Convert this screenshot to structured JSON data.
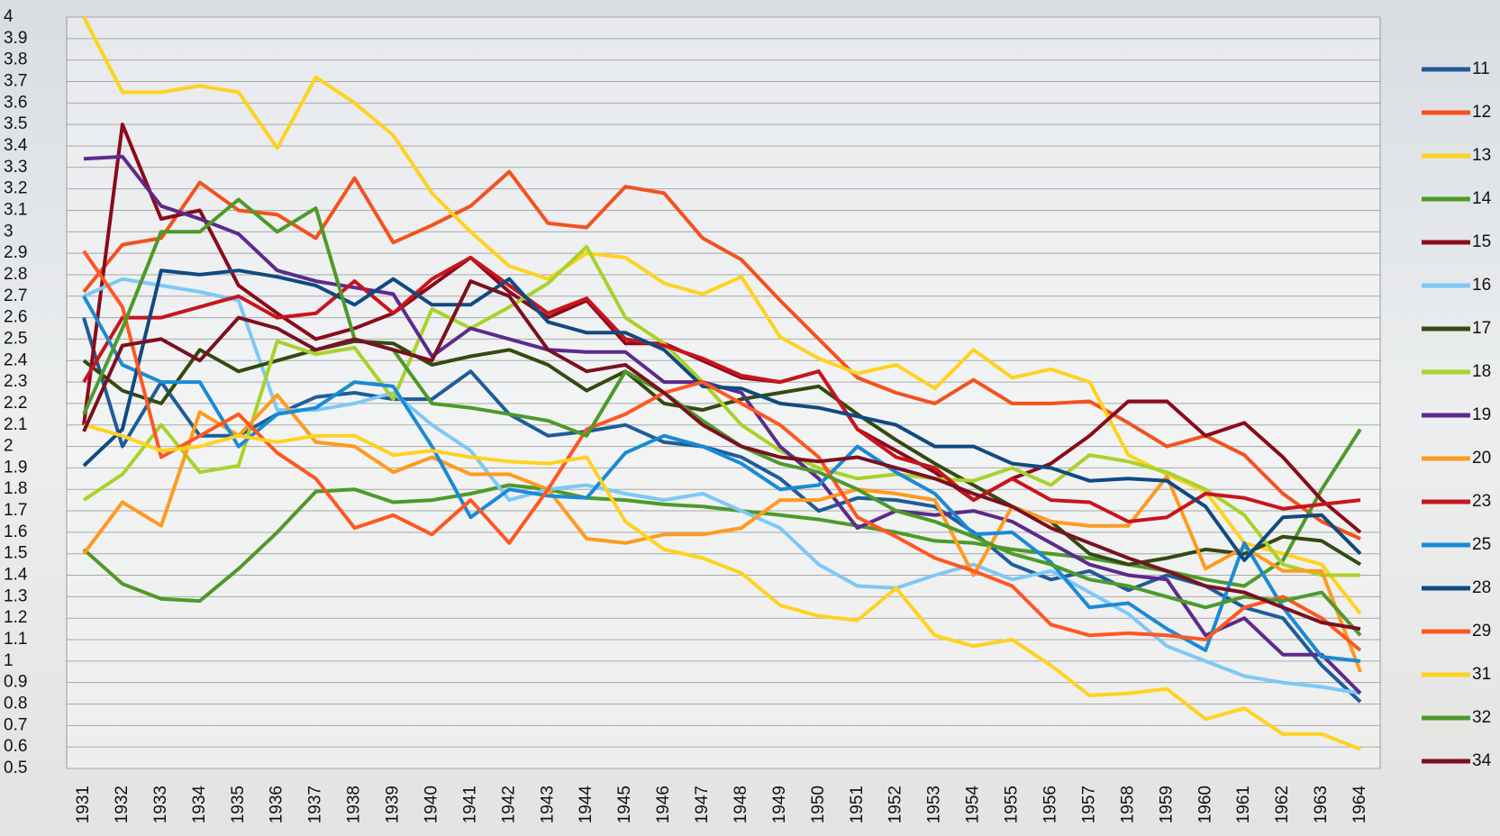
{
  "chart_data": {
    "type": "line",
    "categories": [
      "1931",
      "1932",
      "1933",
      "1934",
      "1935",
      "1936",
      "1937",
      "1938",
      "1939",
      "1940",
      "1941",
      "1942",
      "1943",
      "1944",
      "1945",
      "1946",
      "1947",
      "1948",
      "1949",
      "1950",
      "1951",
      "1952",
      "1953",
      "1954",
      "1955",
      "1956",
      "1957",
      "1958",
      "1959",
      "1960",
      "1961",
      "1962",
      "1963",
      "1964"
    ],
    "ylim": [
      0.5,
      4
    ],
    "yticks": [
      0.5,
      0.6,
      0.7,
      0.8,
      0.9,
      1,
      1.1,
      1.2,
      1.3,
      1.4,
      1.5,
      1.6,
      1.7,
      1.8,
      1.9,
      2,
      2.1,
      2.2,
      2.3,
      2.4,
      2.5,
      2.6,
      2.7,
      2.8,
      2.9,
      3,
      3.1,
      3.2,
      3.3,
      3.4,
      3.5,
      3.6,
      3.7,
      3.8,
      3.9,
      4
    ],
    "grid": true,
    "legend": "right",
    "series": [
      {
        "name": "11",
        "color": "#1f5c99",
        "values": [
          2.6,
          2.0,
          2.3,
          2.05,
          2.05,
          2.15,
          2.23,
          2.25,
          2.22,
          2.22,
          2.35,
          2.15,
          2.05,
          2.07,
          2.1,
          2.02,
          2.0,
          1.95,
          1.85,
          1.7,
          1.76,
          1.75,
          1.72,
          1.6,
          1.45,
          1.38,
          1.42,
          1.33,
          1.4,
          1.35,
          1.25,
          1.2,
          0.98,
          0.81
        ]
      },
      {
        "name": "12",
        "color": "#f4511e",
        "values": [
          2.72,
          2.94,
          2.97,
          3.23,
          3.1,
          3.08,
          2.97,
          3.25,
          2.95,
          3.03,
          3.12,
          3.28,
          3.04,
          3.02,
          3.21,
          3.18,
          2.97,
          2.87,
          2.68,
          2.5,
          2.32,
          2.25,
          2.2,
          2.31,
          2.2,
          2.2,
          2.21,
          2.11,
          2.0,
          2.05,
          1.96,
          1.78,
          1.65,
          1.57
        ]
      },
      {
        "name": "13",
        "color": "#ffd21f",
        "values": [
          4.0,
          3.65,
          3.65,
          3.68,
          3.65,
          3.39,
          3.72,
          3.6,
          3.45,
          3.18,
          3.0,
          2.84,
          2.78,
          2.9,
          2.88,
          2.76,
          2.71,
          2.79,
          2.51,
          2.41,
          2.34,
          2.38,
          2.27,
          2.45,
          2.32,
          2.36,
          2.3,
          1.96,
          1.87,
          1.79,
          1.55,
          1.5,
          1.45,
          1.22
        ]
      },
      {
        "name": "14",
        "color": "#4d9a2a",
        "values": [
          1.52,
          1.36,
          1.29,
          1.28,
          1.43,
          1.6,
          1.79,
          1.8,
          1.74,
          1.75,
          1.78,
          1.82,
          1.8,
          1.76,
          1.75,
          1.73,
          1.72,
          1.7,
          1.68,
          1.66,
          1.63,
          1.6,
          1.56,
          1.55,
          1.52,
          1.5,
          1.48,
          1.45,
          1.42,
          1.38,
          1.35,
          1.47,
          1.8,
          2.08
        ]
      },
      {
        "name": "15",
        "color": "#8b0a1a",
        "values": [
          2.1,
          3.5,
          3.06,
          3.1,
          2.75,
          2.62,
          2.5,
          2.55,
          2.62,
          2.75,
          2.88,
          2.72,
          2.6,
          2.68,
          2.48,
          2.48,
          2.4,
          2.32,
          2.3,
          2.35,
          2.08,
          1.98,
          1.88,
          1.75,
          1.85,
          1.92,
          2.05,
          2.21,
          2.21,
          2.05,
          2.11,
          1.95,
          1.75,
          1.6
        ]
      },
      {
        "name": "16",
        "color": "#7ec8f5",
        "values": [
          2.7,
          2.78,
          2.75,
          2.72,
          2.68,
          2.17,
          2.17,
          2.2,
          2.25,
          2.1,
          1.98,
          1.75,
          1.8,
          1.82,
          1.78,
          1.75,
          1.78,
          1.7,
          1.62,
          1.45,
          1.35,
          1.34,
          1.4,
          1.45,
          1.38,
          1.42,
          1.32,
          1.22,
          1.07,
          1.0,
          0.93,
          0.9,
          0.88,
          0.85
        ]
      },
      {
        "name": "17",
        "color": "#344a0f",
        "values": [
          2.4,
          2.26,
          2.2,
          2.45,
          2.35,
          2.4,
          2.45,
          2.49,
          2.48,
          2.38,
          2.42,
          2.45,
          2.38,
          2.26,
          2.35,
          2.2,
          2.17,
          2.22,
          2.25,
          2.28,
          2.15,
          2.03,
          1.92,
          1.82,
          1.72,
          1.65,
          1.5,
          1.45,
          1.48,
          1.52,
          1.5,
          1.58,
          1.56,
          1.45
        ]
      },
      {
        "name": "18",
        "color": "#a9d22a",
        "values": [
          1.75,
          1.87,
          2.1,
          1.88,
          1.91,
          2.49,
          2.43,
          2.46,
          2.22,
          2.64,
          2.55,
          2.65,
          2.76,
          2.93,
          2.6,
          2.48,
          2.3,
          2.1,
          1.98,
          1.9,
          1.85,
          1.87,
          1.85,
          1.84,
          1.9,
          1.82,
          1.96,
          1.93,
          1.88,
          1.8,
          1.68,
          1.45,
          1.4,
          1.4
        ]
      },
      {
        "name": "19",
        "color": "#5c2a8c",
        "values": [
          3.34,
          3.35,
          3.12,
          3.06,
          2.99,
          2.82,
          2.77,
          2.74,
          2.71,
          2.42,
          2.55,
          2.5,
          2.45,
          2.44,
          2.44,
          2.3,
          2.3,
          2.25,
          2.0,
          1.85,
          1.62,
          1.7,
          1.68,
          1.7,
          1.65,
          1.55,
          1.45,
          1.4,
          1.38,
          1.12,
          1.2,
          1.03,
          1.03,
          0.85
        ]
      },
      {
        "name": "20",
        "color": "#ff9a1f",
        "values": [
          1.5,
          1.74,
          1.63,
          2.16,
          2.05,
          2.24,
          2.02,
          2.0,
          1.88,
          1.95,
          1.87,
          1.87,
          1.8,
          1.57,
          1.55,
          1.59,
          1.59,
          1.62,
          1.75,
          1.75,
          1.8,
          1.78,
          1.75,
          1.4,
          1.72,
          1.65,
          1.63,
          1.63,
          1.86,
          1.43,
          1.53,
          1.42,
          1.42,
          0.95
        ]
      },
      {
        "name": "23",
        "color": "#c8141e",
        "values": [
          2.3,
          2.6,
          2.6,
          2.65,
          2.7,
          2.6,
          2.62,
          2.77,
          2.62,
          2.78,
          2.88,
          2.75,
          2.62,
          2.69,
          2.5,
          2.47,
          2.41,
          2.33,
          2.3,
          2.35,
          2.08,
          1.95,
          1.9,
          1.75,
          1.85,
          1.75,
          1.74,
          1.65,
          1.67,
          1.78,
          1.76,
          1.71,
          1.73,
          1.75
        ]
      },
      {
        "name": "25",
        "color": "#1a8ad4",
        "values": [
          2.7,
          2.38,
          2.3,
          2.3,
          2.0,
          2.15,
          2.18,
          2.3,
          2.28,
          2.0,
          1.67,
          1.8,
          1.77,
          1.76,
          1.97,
          2.05,
          2.0,
          1.92,
          1.8,
          1.82,
          2.0,
          1.88,
          1.78,
          1.59,
          1.6,
          1.46,
          1.25,
          1.27,
          1.15,
          1.05,
          1.55,
          1.25,
          1.02,
          1.0
        ]
      },
      {
        "name": "28",
        "color": "#0f4a80",
        "values": [
          1.91,
          2.08,
          2.82,
          2.8,
          2.82,
          2.79,
          2.75,
          2.66,
          2.78,
          2.66,
          2.66,
          2.78,
          2.58,
          2.53,
          2.53,
          2.45,
          2.28,
          2.27,
          2.2,
          2.18,
          2.14,
          2.1,
          2.0,
          2.0,
          1.92,
          1.9,
          1.84,
          1.85,
          1.84,
          1.72,
          1.47,
          1.67,
          1.68,
          1.5
        ]
      },
      {
        "name": "29",
        "color": "#ff5722",
        "values": [
          2.91,
          2.65,
          1.95,
          2.05,
          2.15,
          1.97,
          1.85,
          1.62,
          1.68,
          1.59,
          1.75,
          1.55,
          1.8,
          2.08,
          2.15,
          2.25,
          2.3,
          2.2,
          2.1,
          1.95,
          1.67,
          1.58,
          1.48,
          1.42,
          1.35,
          1.17,
          1.12,
          1.13,
          1.12,
          1.1,
          1.25,
          1.3,
          1.2,
          1.05
        ]
      },
      {
        "name": "31",
        "color": "#ffd21f",
        "values": [
          2.1,
          2.05,
          1.98,
          2.0,
          2.05,
          2.02,
          2.05,
          2.05,
          1.96,
          1.98,
          1.95,
          1.93,
          1.92,
          1.95,
          1.65,
          1.52,
          1.48,
          1.41,
          1.26,
          1.21,
          1.19,
          1.34,
          1.12,
          1.07,
          1.1,
          0.98,
          0.84,
          0.85,
          0.87,
          0.73,
          0.78,
          0.66,
          0.66,
          0.59
        ]
      },
      {
        "name": "32",
        "color": "#4d9a2a",
        "values": [
          2.15,
          2.55,
          3.0,
          3.0,
          3.15,
          3.0,
          3.11,
          2.5,
          2.45,
          2.2,
          2.18,
          2.15,
          2.12,
          2.05,
          2.35,
          2.25,
          2.12,
          2.0,
          1.92,
          1.88,
          1.8,
          1.7,
          1.65,
          1.58,
          1.5,
          1.45,
          1.38,
          1.35,
          1.3,
          1.25,
          1.3,
          1.28,
          1.32,
          1.12
        ]
      },
      {
        "name": "34",
        "color": "#7a1020",
        "values": [
          2.07,
          2.47,
          2.5,
          2.4,
          2.6,
          2.55,
          2.45,
          2.5,
          2.45,
          2.4,
          2.77,
          2.7,
          2.45,
          2.35,
          2.38,
          2.25,
          2.1,
          2.0,
          1.95,
          1.93,
          1.95,
          1.9,
          1.85,
          1.78,
          1.72,
          1.62,
          1.55,
          1.48,
          1.42,
          1.35,
          1.32,
          1.25,
          1.18,
          1.15
        ]
      }
    ]
  }
}
